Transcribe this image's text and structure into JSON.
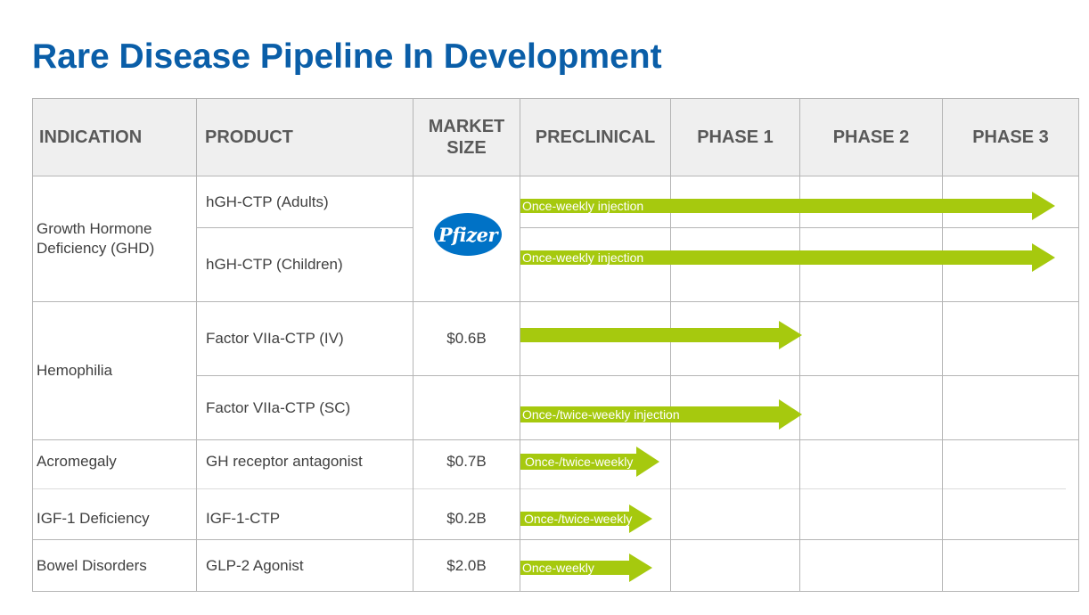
{
  "title": "Rare Disease Pipeline In Development",
  "colors": {
    "title": "#0a5ea8",
    "arrow": "#a6c90e",
    "header_bg": "#efefef",
    "pfizer": "#0072c6"
  },
  "headers": {
    "indication": "INDICATION",
    "product": "PRODUCT",
    "market_line1": "MARKET",
    "market_line2": "SIZE",
    "preclinical": "PRECLINICAL",
    "phase1": "PHASE 1",
    "phase2": "PHASE 2",
    "phase3": "PHASE 3"
  },
  "indications": {
    "ghd_line1": "Growth Hormone",
    "ghd_line2": "Deficiency (GHD)",
    "hemophilia": "Hemophilia",
    "acromegaly": "Acromegaly",
    "igf": "IGF-1 Deficiency",
    "bowel": "Bowel Disorders"
  },
  "products": {
    "hgh_adults": "hGH-CTP (Adults)",
    "hgh_children": "hGH-CTP (Children)",
    "f7_iv": "Factor VIIa-CTP (IV)",
    "f7_sc": "Factor VIIa-CTP (SC)",
    "gh_antagonist": "GH receptor antagonist",
    "igf_ctp": "IGF-1-CTP",
    "glp2": "GLP-2 Agonist"
  },
  "market": {
    "partner_logo_text": "Pfizer",
    "f7_iv": "$0.6B",
    "acromegaly": "$0.7B",
    "igf": "$0.2B",
    "bowel": "$2.0B"
  },
  "arrows": {
    "hgh_adults": {
      "label": "Once-weekly injection",
      "reached_stage": "Phase 3"
    },
    "hgh_children": {
      "label": "Once-weekly injection",
      "reached_stage": "Phase 3"
    },
    "f7_iv": {
      "label": "",
      "reached_stage": "Phase 1"
    },
    "f7_sc": {
      "label": "Once-/twice-weekly injection",
      "reached_stage": "Phase 1"
    },
    "gh_antagonist": {
      "label": "Once-/twice-weekly",
      "reached_stage": "Preclinical"
    },
    "igf_ctp": {
      "label": "Once-/twice-weekly",
      "reached_stage": "Preclinical"
    },
    "glp2": {
      "label": "Once-weekly",
      "reached_stage": "Preclinical"
    }
  }
}
